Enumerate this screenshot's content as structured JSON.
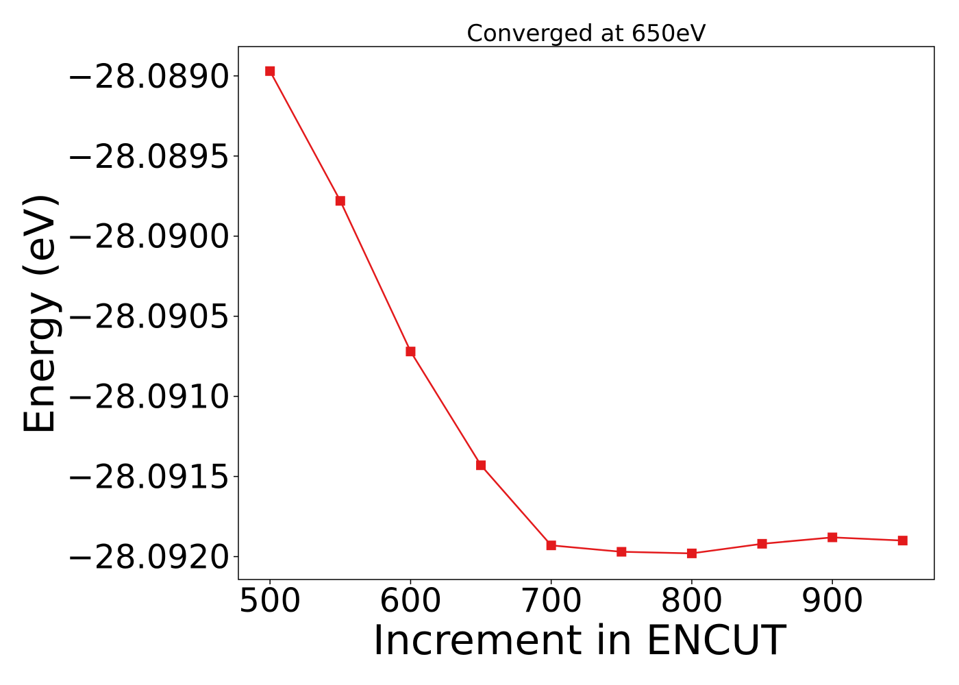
{
  "chart_data": {
    "type": "line",
    "title": "Converged at 650eV",
    "xlabel": "Increment in ENCUT",
    "ylabel": "Energy (eV)",
    "x": [
      500,
      550,
      600,
      650,
      700,
      750,
      800,
      850,
      900,
      950
    ],
    "series": [
      {
        "values": [
          -28.08897,
          -28.08978,
          -28.09072,
          -28.09143,
          -28.09193,
          -28.09197,
          -28.09198,
          -28.09192,
          -28.09188,
          -28.0919
        ],
        "color": "#e31a1c",
        "marker": "square"
      }
    ],
    "xlim": [
      477.5,
      972.5
    ],
    "ylim": [
      -28.092143,
      -28.088817
    ],
    "xticks": [
      500,
      600,
      700,
      800,
      900
    ],
    "xtick_labels": [
      "500",
      "600",
      "700",
      "800",
      "900"
    ],
    "yticks": [
      -28.089,
      -28.0895,
      -28.09,
      -28.0905,
      -28.091,
      -28.0915,
      -28.092
    ],
    "ytick_labels": [
      "−28.0890",
      "−28.0895",
      "−28.0900",
      "−28.0905",
      "−28.0910",
      "−28.0915",
      "−28.0920"
    ],
    "grid": false,
    "legend": "none"
  }
}
